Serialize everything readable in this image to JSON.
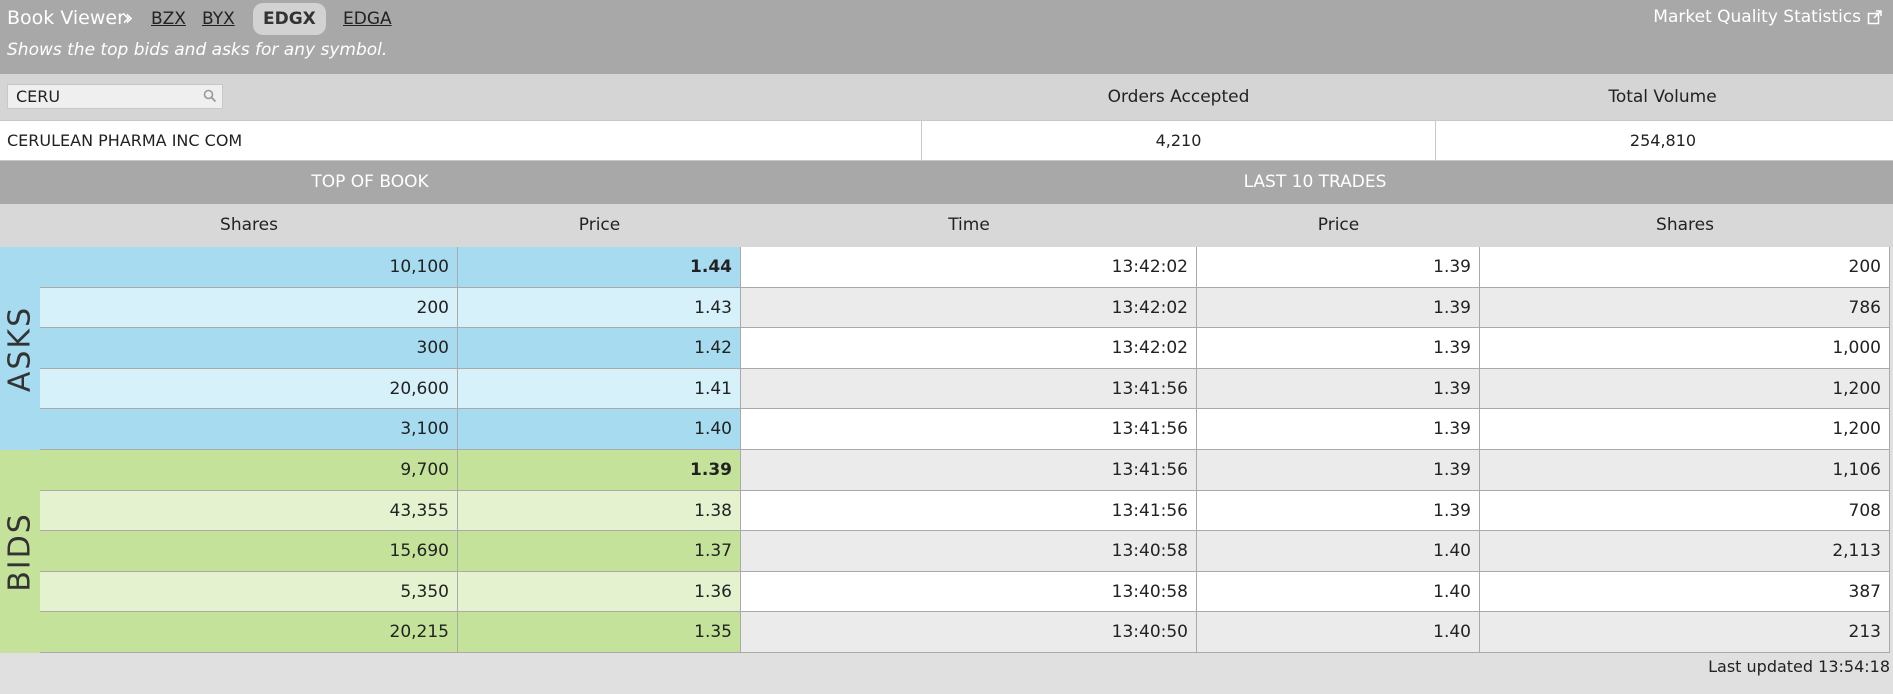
{
  "header": {
    "title": "Book Viewer",
    "tabs": [
      "BZX",
      "BYX",
      "EDGX",
      "EDGA"
    ],
    "active_tab": "EDGX",
    "subtitle": "Shows the top bids and asks for any symbol.",
    "market_quality_link": "Market Quality Statistics",
    "external_link_icon": "external-link-icon"
  },
  "search": {
    "value": "CERU",
    "icon": "search-icon"
  },
  "stats": {
    "orders_accepted_label": "Orders Accepted",
    "total_volume_label": "Total Volume",
    "company_name": "CERULEAN PHARMA INC COM",
    "orders_accepted": "4,210",
    "total_volume": "254,810"
  },
  "sections": {
    "top_of_book": "TOP OF BOOK",
    "last_trades": "LAST 10 TRADES"
  },
  "columns": {
    "book_shares": "Shares",
    "book_price": "Price",
    "trade_time": "Time",
    "trade_price": "Price",
    "trade_shares": "Shares"
  },
  "side_labels": {
    "asks": "ASKS",
    "bids": "BIDS"
  },
  "asks": [
    {
      "shares": "10,100",
      "price": "1.44",
      "bold": true
    },
    {
      "shares": "200",
      "price": "1.43",
      "bold": false
    },
    {
      "shares": "300",
      "price": "1.42",
      "bold": false
    },
    {
      "shares": "20,600",
      "price": "1.41",
      "bold": false
    },
    {
      "shares": "3,100",
      "price": "1.40",
      "bold": false
    }
  ],
  "bids": [
    {
      "shares": "9,700",
      "price": "1.39",
      "bold": true
    },
    {
      "shares": "43,355",
      "price": "1.38",
      "bold": false
    },
    {
      "shares": "15,690",
      "price": "1.37",
      "bold": false
    },
    {
      "shares": "5,350",
      "price": "1.36",
      "bold": false
    },
    {
      "shares": "20,215",
      "price": "1.35",
      "bold": false
    }
  ],
  "trades": [
    {
      "time": "13:42:02",
      "price": "1.39",
      "shares": "200"
    },
    {
      "time": "13:42:02",
      "price": "1.39",
      "shares": "786"
    },
    {
      "time": "13:42:02",
      "price": "1.39",
      "shares": "1,000"
    },
    {
      "time": "13:41:56",
      "price": "1.39",
      "shares": "1,200"
    },
    {
      "time": "13:41:56",
      "price": "1.39",
      "shares": "1,200"
    },
    {
      "time": "13:41:56",
      "price": "1.39",
      "shares": "1,106"
    },
    {
      "time": "13:41:56",
      "price": "1.39",
      "shares": "708"
    },
    {
      "time": "13:40:58",
      "price": "1.40",
      "shares": "2,113"
    },
    {
      "time": "13:40:58",
      "price": "1.40",
      "shares": "387"
    },
    {
      "time": "13:40:50",
      "price": "1.40",
      "shares": "213"
    }
  ],
  "colors": {
    "ask_dark": "#a6dbf0",
    "ask_light": "#d6f1fa",
    "bid_dark": "#c4e29a",
    "bid_light": "#e4f2d0",
    "trade_white": "#ffffff",
    "trade_gray": "#ebebeb"
  },
  "footer": {
    "last_updated": "Last updated 13:54:18"
  }
}
